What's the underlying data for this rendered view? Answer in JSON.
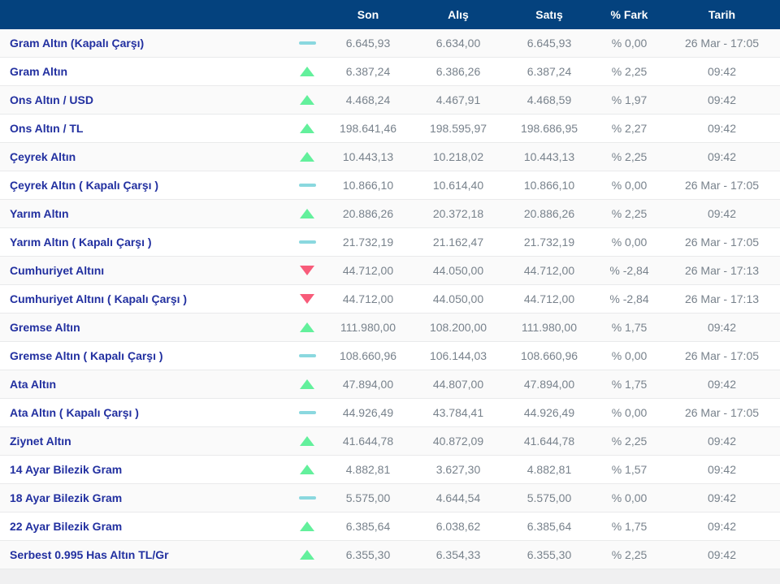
{
  "table": {
    "columns": {
      "son": "Son",
      "alis": "Alış",
      "satis": "Satış",
      "fark": "% Fark",
      "tarih": "Tarih"
    },
    "rows": [
      {
        "name": "Gram Altın (Kapalı Çarşı)",
        "trend": "flat",
        "son": "6.645,93",
        "alis": "6.634,00",
        "satis": "6.645,93",
        "fark": "% 0,00",
        "tarih": "26 Mar - 17:05"
      },
      {
        "name": "Gram Altın",
        "trend": "up",
        "son": "6.387,24",
        "alis": "6.386,26",
        "satis": "6.387,24",
        "fark": "% 2,25",
        "tarih": "09:42"
      },
      {
        "name": "Ons Altın / USD",
        "trend": "up",
        "son": "4.468,24",
        "alis": "4.467,91",
        "satis": "4.468,59",
        "fark": "% 1,97",
        "tarih": "09:42"
      },
      {
        "name": "Ons Altın / TL",
        "trend": "up",
        "son": "198.641,46",
        "alis": "198.595,97",
        "satis": "198.686,95",
        "fark": "% 2,27",
        "tarih": "09:42"
      },
      {
        "name": "Çeyrek Altın",
        "trend": "up",
        "son": "10.443,13",
        "alis": "10.218,02",
        "satis": "10.443,13",
        "fark": "% 2,25",
        "tarih": "09:42"
      },
      {
        "name": "Çeyrek Altın ( Kapalı Çarşı )",
        "trend": "flat",
        "son": "10.866,10",
        "alis": "10.614,40",
        "satis": "10.866,10",
        "fark": "% 0,00",
        "tarih": "26 Mar - 17:05"
      },
      {
        "name": "Yarım Altın",
        "trend": "up",
        "son": "20.886,26",
        "alis": "20.372,18",
        "satis": "20.886,26",
        "fark": "% 2,25",
        "tarih": "09:42"
      },
      {
        "name": "Yarım Altın ( Kapalı Çarşı )",
        "trend": "flat",
        "son": "21.732,19",
        "alis": "21.162,47",
        "satis": "21.732,19",
        "fark": "% 0,00",
        "tarih": "26 Mar - 17:05"
      },
      {
        "name": "Cumhuriyet Altını",
        "trend": "down",
        "son": "44.712,00",
        "alis": "44.050,00",
        "satis": "44.712,00",
        "fark": "% -2,84",
        "tarih": "26 Mar - 17:13"
      },
      {
        "name": "Cumhuriyet Altını ( Kapalı Çarşı )",
        "trend": "down",
        "son": "44.712,00",
        "alis": "44.050,00",
        "satis": "44.712,00",
        "fark": "% -2,84",
        "tarih": "26 Mar - 17:13"
      },
      {
        "name": "Gremse Altın",
        "trend": "up",
        "son": "111.980,00",
        "alis": "108.200,00",
        "satis": "111.980,00",
        "fark": "% 1,75",
        "tarih": "09:42"
      },
      {
        "name": "Gremse Altın ( Kapalı Çarşı )",
        "trend": "flat",
        "son": "108.660,96",
        "alis": "106.144,03",
        "satis": "108.660,96",
        "fark": "% 0,00",
        "tarih": "26 Mar - 17:05"
      },
      {
        "name": "Ata Altın",
        "trend": "up",
        "son": "47.894,00",
        "alis": "44.807,00",
        "satis": "47.894,00",
        "fark": "% 1,75",
        "tarih": "09:42"
      },
      {
        "name": "Ata Altın ( Kapalı Çarşı )",
        "trend": "flat",
        "son": "44.926,49",
        "alis": "43.784,41",
        "satis": "44.926,49",
        "fark": "% 0,00",
        "tarih": "26 Mar - 17:05"
      },
      {
        "name": "Ziynet Altın",
        "trend": "up",
        "son": "41.644,78",
        "alis": "40.872,09",
        "satis": "41.644,78",
        "fark": "% 2,25",
        "tarih": "09:42"
      },
      {
        "name": "14 Ayar Bilezik Gram",
        "trend": "up",
        "son": "4.882,81",
        "alis": "3.627,30",
        "satis": "4.882,81",
        "fark": "% 1,57",
        "tarih": "09:42"
      },
      {
        "name": "18 Ayar Bilezik Gram",
        "trend": "flat",
        "son": "5.575,00",
        "alis": "4.644,54",
        "satis": "5.575,00",
        "fark": "% 0,00",
        "tarih": "09:42"
      },
      {
        "name": "22 Ayar Bilezik Gram",
        "trend": "up",
        "son": "6.385,64",
        "alis": "6.038,62",
        "satis": "6.385,64",
        "fark": "% 1,75",
        "tarih": "09:42"
      },
      {
        "name": "Serbest 0.995 Has Altın TL/Gr",
        "trend": "up",
        "son": "6.355,30",
        "alis": "6.354,33",
        "satis": "6.355,30",
        "fark": "% 2,25",
        "tarih": "09:42"
      }
    ]
  },
  "colors": {
    "header_bg": "#04427e",
    "header_text": "#ffffff",
    "row_name_blue": "#2230a0",
    "value_grey": "#78828c",
    "trend_up_green": "#63f09c",
    "trend_down_red": "#f85c7a",
    "trend_flat_cyan": "#8ad8df",
    "row_alt_bg": "#fafafa",
    "row_divider": "#e9eaeb",
    "footer_strip_bg": "#f0f0f1"
  }
}
